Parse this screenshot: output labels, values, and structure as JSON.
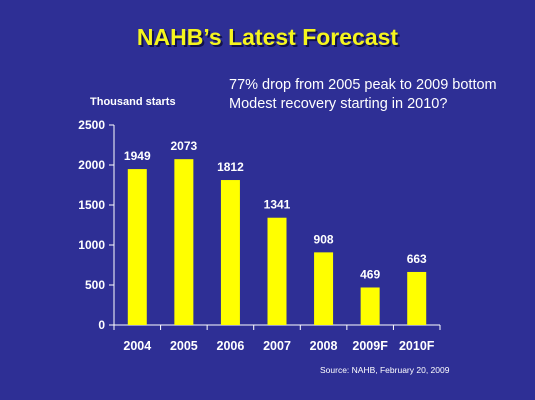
{
  "slide": {
    "title": "NAHB’s Latest Forecast",
    "subtitle_line1": "77% drop from 2005 peak to 2009 bottom",
    "subtitle_line2": "Modest recovery starting in 2010?",
    "source": "Source: NAHB, February 20, 2009"
  },
  "colors": {
    "background": "#2e2f95",
    "bar": "#ffff00",
    "title": "#f5f51e",
    "text": "#ffffff"
  },
  "chart_data": {
    "type": "bar",
    "title": "",
    "ylabel": "Thousand starts",
    "xlabel": "",
    "categories": [
      "2004",
      "2005",
      "2006",
      "2007",
      "2008",
      "2009F",
      "2010F"
    ],
    "values": [
      1949,
      2073,
      1812,
      1341,
      908,
      469,
      663
    ],
    "data_labels": [
      "1949",
      "2073",
      "1812",
      "1341",
      "908",
      "469",
      "663"
    ],
    "ylim": [
      0,
      2500
    ],
    "yticks": [
      0,
      500,
      1000,
      1500,
      2000,
      2500
    ],
    "grid": false,
    "legend": "none"
  }
}
